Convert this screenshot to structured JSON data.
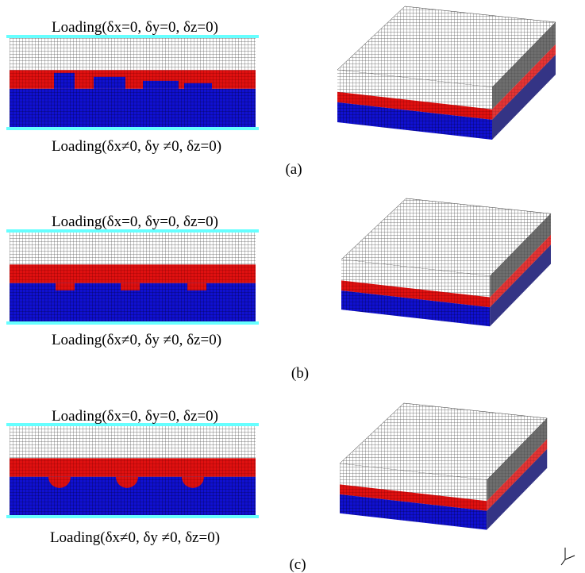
{
  "panels": [
    {
      "top_label": "Loading(δx=0, δy=0, δz=0)",
      "bottom_label": "Loading(δx≠0, δy ≠0, δz=0)",
      "caption": "(a)"
    },
    {
      "top_label": "Loading(δx=0, δy=0, δz=0)",
      "bottom_label": "Loading(δx≠0, δy ≠0, δz=0)",
      "caption": "(b)"
    },
    {
      "top_label": "Loading(δx=0, δy=0, δz=0)",
      "bottom_label": "Loading(δx≠0, δy ≠0, δz=0)",
      "caption": "(c)"
    }
  ]
}
